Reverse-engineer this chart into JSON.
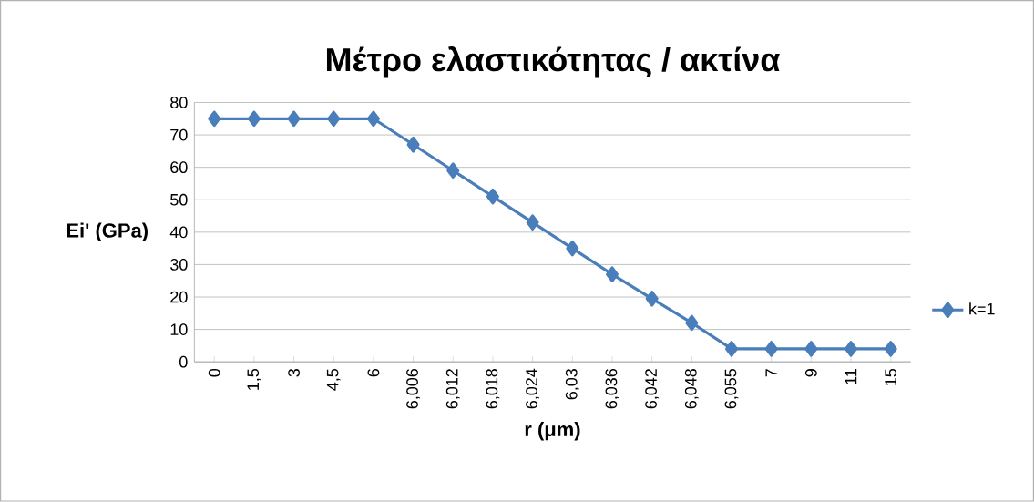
{
  "chart_data": {
    "type": "line",
    "title": "Μέτρο ελαστικότητας / ακτίνα",
    "xlabel": "r (μm)",
    "ylabel": "Ei' (GPa)",
    "categories": [
      "0",
      "1,5",
      "3",
      "4,5",
      "6",
      "6,006",
      "6,012",
      "6,018",
      "6,024",
      "6,03",
      "6,036",
      "6,042",
      "6,048",
      "6,055",
      "7",
      "9",
      "11",
      "15"
    ],
    "series": [
      {
        "name": "k=1",
        "color": "#4a7ebb",
        "values": [
          75,
          75,
          75,
          75,
          75,
          67,
          59,
          51,
          43,
          35,
          27,
          19.5,
          12,
          4,
          4,
          4,
          4,
          4
        ]
      }
    ],
    "ylim": [
      0,
      80
    ],
    "yticks": [
      0,
      10,
      20,
      30,
      40,
      50,
      60,
      70,
      80
    ],
    "grid": "y",
    "legend": "right",
    "marker": "diamond",
    "line_style": "solid"
  }
}
